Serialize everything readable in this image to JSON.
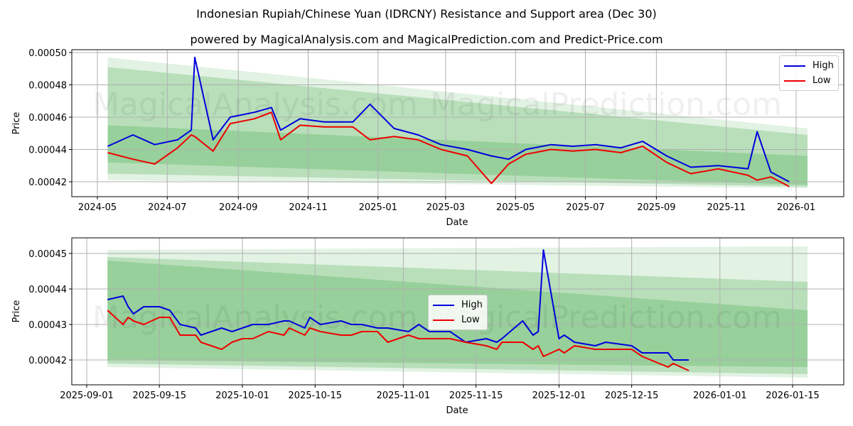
{
  "title": "Indonesian Rupiah/Chinese Yuan (IDRCNY) Resistance and Support area (Dec 30)",
  "subtitle": "powered by MagicalAnalysis.com and MagicalPrediction.com and Predict-Price.com",
  "watermarks": [
    "MagicalAnalysis.com",
    "MagicalPrediction.com"
  ],
  "colors": {
    "high": "#0000dd",
    "low": "#ee0000",
    "band": "#4caf50"
  },
  "legend": {
    "high": "High",
    "low": "Low"
  },
  "chart_data": [
    {
      "type": "line",
      "title": "Top panel (full history)",
      "xlabel": "Date",
      "ylabel": "Price",
      "ylim": [
        0.000411,
        0.000501
      ],
      "grid": true,
      "legend_position": "upper right",
      "x_ticks": [
        "2024-05",
        "2024-07",
        "2024-09",
        "2024-11",
        "2025-01",
        "2025-03",
        "2025-05",
        "2025-07",
        "2025-09",
        "2025-11",
        "2026-01"
      ],
      "y_ticks": [
        "0.00042",
        "0.00044",
        "0.00046",
        "0.00048",
        "0.00050"
      ],
      "x": [
        "2024-05-10",
        "2024-06-01",
        "2024-06-20",
        "2024-07-10",
        "2024-07-22",
        "2024-07-25",
        "2024-08-10",
        "2024-08-25",
        "2024-09-15",
        "2024-09-30",
        "2024-10-08",
        "2024-10-25",
        "2024-11-15",
        "2024-12-10",
        "2024-12-25",
        "2025-01-15",
        "2025-02-05",
        "2025-02-25",
        "2025-03-20",
        "2025-04-10",
        "2025-04-25",
        "2025-05-10",
        "2025-06-01",
        "2025-06-20",
        "2025-07-10",
        "2025-08-01",
        "2025-08-20",
        "2025-09-10",
        "2025-10-01",
        "2025-10-25",
        "2025-11-20",
        "2025-11-28",
        "2025-12-10",
        "2025-12-26"
      ],
      "series": [
        {
          "name": "High",
          "values": [
            0.000442,
            0.000449,
            0.000443,
            0.000446,
            0.000452,
            0.000497,
            0.000446,
            0.00046,
            0.000463,
            0.000466,
            0.000452,
            0.000459,
            0.000457,
            0.000457,
            0.000468,
            0.000453,
            0.000449,
            0.000443,
            0.00044,
            0.000436,
            0.000434,
            0.00044,
            0.000443,
            0.000442,
            0.000443,
            0.000441,
            0.000445,
            0.000436,
            0.000429,
            0.00043,
            0.000428,
            0.000451,
            0.000426,
            0.00042
          ]
        },
        {
          "name": "Low",
          "values": [
            0.000438,
            0.000434,
            0.000431,
            0.000441,
            0.000449,
            0.000448,
            0.000439,
            0.000456,
            0.000459,
            0.000463,
            0.000446,
            0.000455,
            0.000454,
            0.000454,
            0.000446,
            0.000448,
            0.000446,
            0.00044,
            0.000436,
            0.000419,
            0.000431,
            0.000437,
            0.00044,
            0.000439,
            0.00044,
            0.000438,
            0.000442,
            0.000432,
            0.000425,
            0.000428,
            0.000424,
            0.000421,
            0.000423,
            0.000417
          ]
        }
      ],
      "bands": [
        {
          "name": "outer",
          "start": [
            0.000497,
            0.000421
          ],
          "end": [
            0.000453,
            0.000416
          ]
        },
        {
          "name": "middle",
          "start": [
            0.000491,
            0.000425
          ],
          "end": [
            0.000449,
            0.000417
          ]
        },
        {
          "name": "inner",
          "start": [
            0.000455,
            0.000432
          ],
          "end": [
            0.000436,
            0.000418
          ]
        }
      ]
    },
    {
      "type": "line",
      "title": "Bottom panel (recent)",
      "xlabel": "Date",
      "ylabel": "Price",
      "ylim": [
        0.000413,
        0.000455
      ],
      "grid": true,
      "legend_position": "center left",
      "x_ticks": [
        "2025-09-01",
        "2025-09-15",
        "2025-10-01",
        "2025-10-15",
        "2025-11-01",
        "2025-11-15",
        "2025-12-01",
        "2025-12-15",
        "2026-01-01",
        "2026-01-15"
      ],
      "y_ticks": [
        "0.00042",
        "0.00043",
        "0.00044",
        "0.00045"
      ],
      "x": [
        "2025-09-05",
        "2025-09-08",
        "2025-09-09",
        "2025-09-10",
        "2025-09-12",
        "2025-09-15",
        "2025-09-17",
        "2025-09-19",
        "2025-09-22",
        "2025-09-23",
        "2025-09-25",
        "2025-09-27",
        "2025-09-29",
        "2025-10-01",
        "2025-10-03",
        "2025-10-06",
        "2025-10-09",
        "2025-10-10",
        "2025-10-13",
        "2025-10-14",
        "2025-10-16",
        "2025-10-20",
        "2025-10-22",
        "2025-10-24",
        "2025-10-27",
        "2025-10-29",
        "2025-11-02",
        "2025-11-04",
        "2025-11-06",
        "2025-11-10",
        "2025-11-13",
        "2025-11-17",
        "2025-11-19",
        "2025-11-20",
        "2025-11-24",
        "2025-11-26",
        "2025-11-27",
        "2025-11-28",
        "2025-12-01",
        "2025-12-02",
        "2025-12-04",
        "2025-12-08",
        "2025-12-10",
        "2025-12-15",
        "2025-12-17",
        "2025-12-22",
        "2025-12-23",
        "2025-12-26"
      ],
      "series": [
        {
          "name": "High",
          "values": [
            0.000437,
            0.000438,
            0.000435,
            0.000433,
            0.000435,
            0.000435,
            0.000434,
            0.00043,
            0.000429,
            0.000427,
            0.000428,
            0.000429,
            0.000428,
            0.000429,
            0.00043,
            0.00043,
            0.000431,
            0.000431,
            0.000429,
            0.000432,
            0.00043,
            0.000431,
            0.00043,
            0.00043,
            0.000429,
            0.000429,
            0.000428,
            0.00043,
            0.000428,
            0.000428,
            0.000425,
            0.000426,
            0.000425,
            0.000426,
            0.000431,
            0.000427,
            0.000428,
            0.000451,
            0.000426,
            0.000427,
            0.000425,
            0.000424,
            0.000425,
            0.000424,
            0.000422,
            0.000422,
            0.00042,
            0.00042
          ]
        },
        {
          "name": "Low",
          "values": [
            0.000434,
            0.00043,
            0.000432,
            0.000431,
            0.00043,
            0.000432,
            0.000432,
            0.000427,
            0.000427,
            0.000425,
            0.000424,
            0.000423,
            0.000425,
            0.000426,
            0.000426,
            0.000428,
            0.000427,
            0.000429,
            0.000427,
            0.000429,
            0.000428,
            0.000427,
            0.000427,
            0.000428,
            0.000428,
            0.000425,
            0.000427,
            0.000426,
            0.000426,
            0.000426,
            0.000425,
            0.000424,
            0.000423,
            0.000425,
            0.000425,
            0.000423,
            0.000424,
            0.000421,
            0.000423,
            0.000422,
            0.000424,
            0.000423,
            0.000423,
            0.000423,
            0.000421,
            0.000418,
            0.000419,
            0.000417
          ]
        }
      ],
      "bands": [
        {
          "name": "outer",
          "start": [
            0.000451,
            0.000418
          ],
          "end": [
            0.000452,
            0.000415
          ]
        },
        {
          "name": "middle",
          "start": [
            0.000449,
            0.000419
          ],
          "end": [
            0.000442,
            0.000416
          ]
        },
        {
          "name": "inner",
          "start": [
            0.000448,
            0.00042
          ],
          "end": [
            0.000434,
            0.000418
          ]
        }
      ]
    }
  ]
}
